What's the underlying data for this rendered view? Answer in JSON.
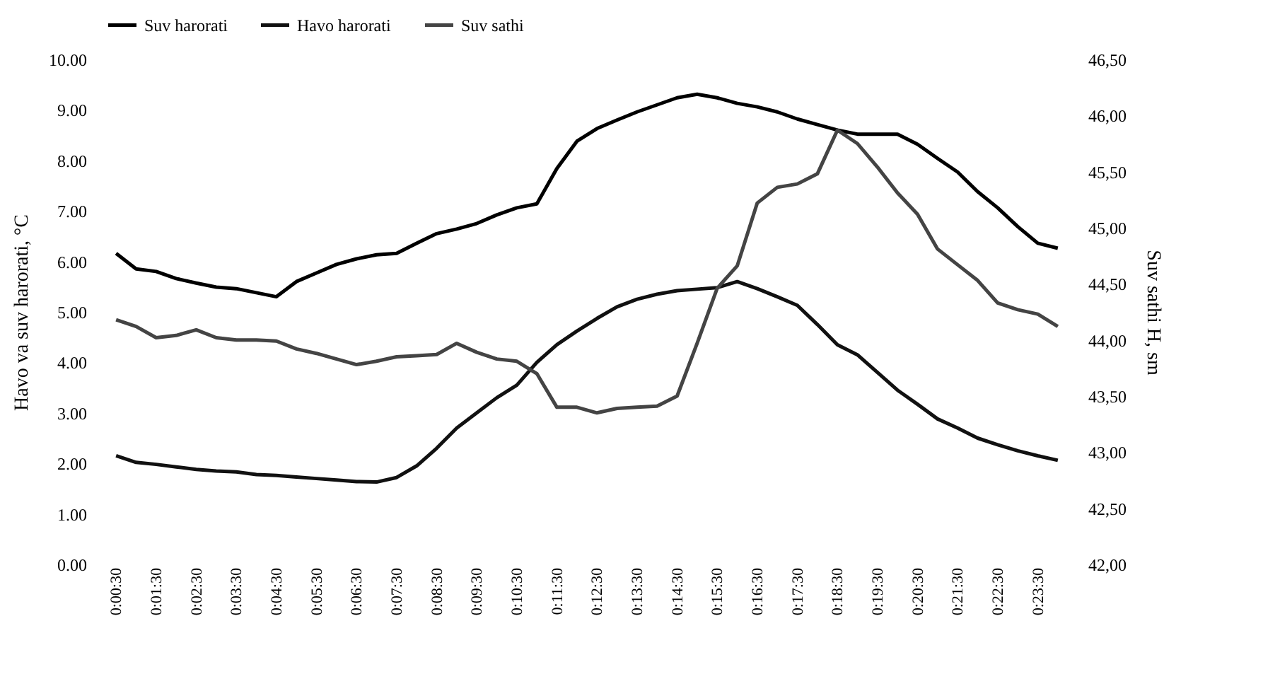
{
  "chart_data": {
    "type": "line",
    "categories": [
      "0:00:30",
      null,
      "0:01:30",
      null,
      "0:02:30",
      null,
      "0:03:30",
      null,
      "0:04:30",
      null,
      "0:05:30",
      null,
      "0:06:30",
      null,
      "0:07:30",
      null,
      "0:08:30",
      null,
      "0:09:30",
      null,
      "0:10:30",
      null,
      "0:11:30",
      null,
      "0:12:30",
      null,
      "0:13:30",
      null,
      "0:14:30",
      null,
      "0:15:30",
      null,
      "0:16:30",
      null,
      "0:17:30",
      null,
      "0:18:30",
      null,
      "0:19:30",
      null,
      "0:20:30",
      null,
      "0:21:30",
      null,
      "0:22:30",
      null,
      "0:23:30",
      null
    ],
    "series": [
      {
        "name": "Suv harorati",
        "color": "#000000",
        "values": [
          6.16,
          5.85,
          5.8,
          5.66,
          5.57,
          5.49,
          5.46,
          5.38,
          5.3,
          5.6,
          5.77,
          5.94,
          6.05,
          6.13,
          6.16,
          6.36,
          6.55,
          6.64,
          6.75,
          6.92,
          7.06,
          7.14,
          7.84,
          8.38,
          8.63,
          8.8,
          8.96,
          9.1,
          9.24,
          9.31,
          9.24,
          9.13,
          9.06,
          8.96,
          8.82,
          8.71,
          8.6,
          8.52,
          8.52,
          8.52,
          8.32,
          8.04,
          7.77,
          7.38,
          7.06,
          6.69,
          6.36,
          6.26
        ]
      },
      {
        "name": "Havo harorati",
        "color": "#111111",
        "values": [
          2.15,
          2.02,
          1.98,
          1.93,
          1.88,
          1.85,
          1.83,
          1.78,
          1.76,
          1.73,
          1.7,
          1.67,
          1.64,
          1.63,
          1.72,
          1.95,
          2.3,
          2.7,
          3.0,
          3.3,
          3.55,
          4.0,
          4.35,
          4.62,
          4.87,
          5.1,
          5.25,
          5.35,
          5.42,
          5.45,
          5.48,
          5.6,
          5.46,
          5.3,
          5.13,
          4.75,
          4.35,
          4.15,
          3.8,
          3.45,
          3.17,
          2.88,
          2.7,
          2.5,
          2.37,
          2.25,
          2.15,
          2.06
        ]
      },
      {
        "name": "Suv sathi",
        "color": "#444444",
        "axis": "y2",
        "values": [
          44.18,
          44.12,
          44.02,
          44.04,
          44.09,
          44.02,
          44.0,
          44.0,
          43.99,
          43.92,
          43.88,
          43.83,
          43.78,
          43.81,
          43.85,
          43.86,
          43.87,
          43.97,
          43.89,
          43.83,
          43.81,
          43.7,
          43.4,
          43.4,
          43.35,
          43.39,
          43.4,
          43.41,
          43.5,
          43.97,
          44.46,
          44.66,
          45.22,
          45.36,
          45.39,
          45.48,
          45.87,
          45.75,
          45.54,
          45.31,
          45.12,
          44.81,
          44.67,
          44.53,
          44.33,
          44.27,
          44.23,
          44.12
        ]
      }
    ],
    "ylabel": "Havo va suv harorati, °C",
    "y2label": "Suv sathi H, sm",
    "ylim": [
      0,
      10
    ],
    "yticks": [
      {
        "value": 0,
        "label": "0.00"
      },
      {
        "value": 1,
        "label": "1.00"
      },
      {
        "value": 2,
        "label": "2.00"
      },
      {
        "value": 3,
        "label": "3.00"
      },
      {
        "value": 4,
        "label": "4.00"
      },
      {
        "value": 5,
        "label": "5.00"
      },
      {
        "value": 6,
        "label": "6.00"
      },
      {
        "value": 7,
        "label": "7.00"
      },
      {
        "value": 8,
        "label": "8.00"
      },
      {
        "value": 9,
        "label": "9.00"
      },
      {
        "value": 10,
        "label": "10.00"
      }
    ],
    "y2lim": [
      42,
      46.5
    ],
    "y2ticks": [
      {
        "value": 42,
        "label": "42,00"
      },
      {
        "value": 42.5,
        "label": "42,50"
      },
      {
        "value": 43,
        "label": "43,00"
      },
      {
        "value": 43.5,
        "label": "43,50"
      },
      {
        "value": 44,
        "label": "44,00"
      },
      {
        "value": 44.5,
        "label": "44,50"
      },
      {
        "value": 45,
        "label": "45,00"
      },
      {
        "value": 45.5,
        "label": "45,50"
      },
      {
        "value": 46,
        "label": "46,00"
      },
      {
        "value": 46.5,
        "label": "46,50"
      }
    ],
    "grid": false,
    "legend": "top",
    "marker": "none",
    "line_style": "solid"
  }
}
